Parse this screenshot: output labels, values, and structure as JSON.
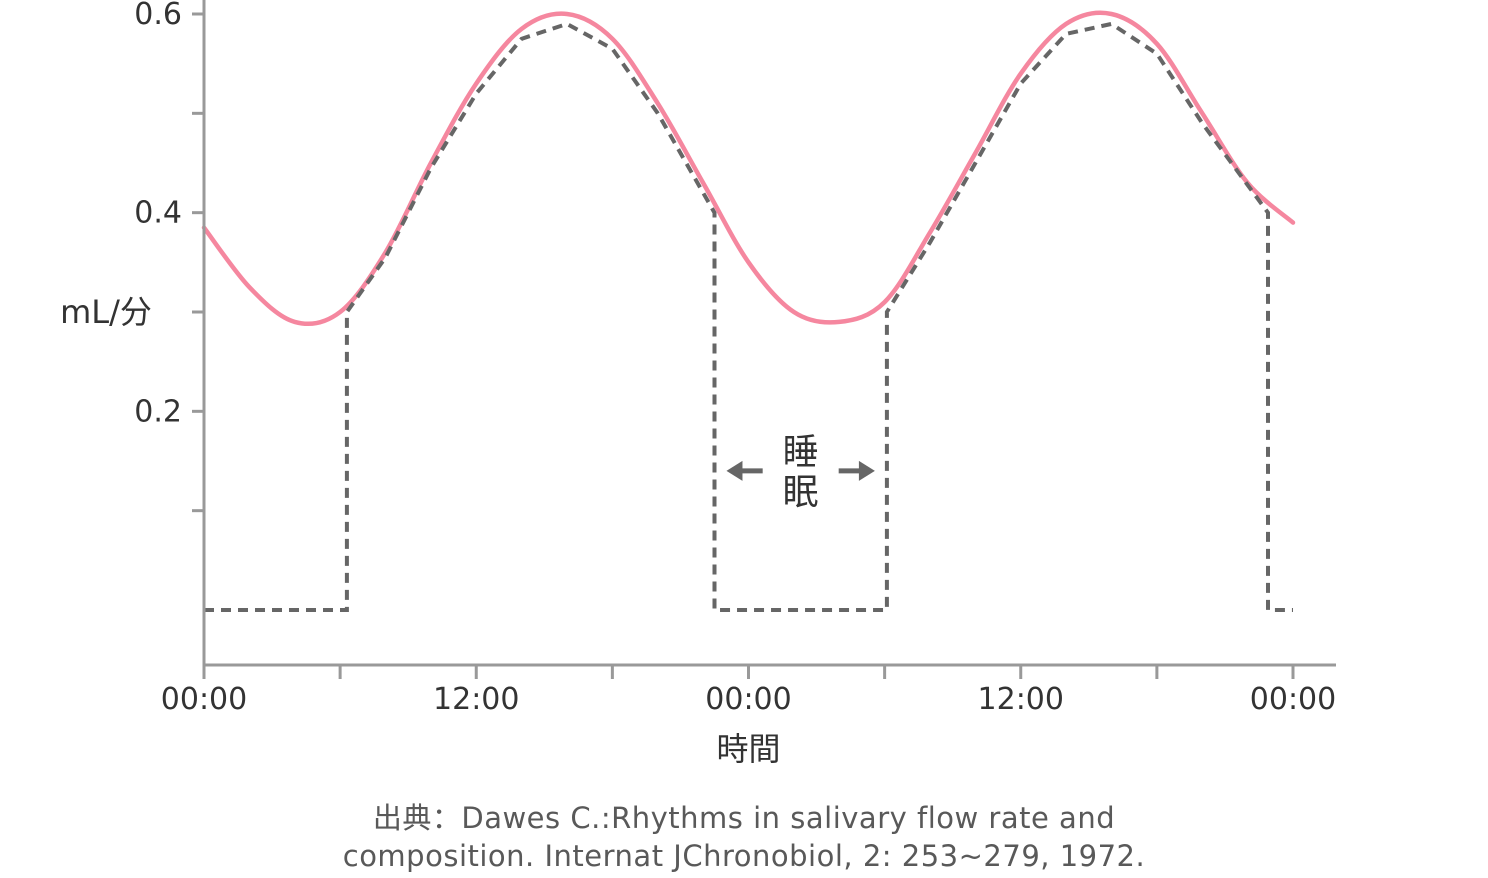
{
  "chart_data": {
    "type": "line",
    "title": "",
    "xlabel": "時間",
    "ylabel": "mL/分",
    "x_tick_labels": [
      "00:00",
      "12:00",
      "00:00",
      "12:00",
      "00:00"
    ],
    "x_ticks_hours": [
      0,
      12,
      24,
      36,
      48
    ],
    "x_minor_ticks_hours": [
      6,
      18,
      30,
      42
    ],
    "xlim_hours": [
      0,
      48
    ],
    "y_tick_labels": [
      "0.6",
      "0.4",
      "0.2"
    ],
    "y_ticks": [
      0.6,
      0.4,
      0.2
    ],
    "y_minor_ticks": [
      0.5,
      0.3,
      0.1
    ],
    "ylim": [
      0,
      0.6
    ],
    "grid": false,
    "series": [
      {
        "style": "solid",
        "color": "#f5879f",
        "x_hours": [
          0,
          2,
          4,
          6,
          8,
          10,
          12,
          14,
          16,
          18,
          20,
          22,
          24,
          26,
          28,
          30,
          32,
          34,
          36,
          38,
          40,
          42,
          44,
          46,
          48
        ],
        "values": [
          0.385,
          0.325,
          0.29,
          0.3,
          0.36,
          0.45,
          0.53,
          0.585,
          0.6,
          0.575,
          0.51,
          0.43,
          0.35,
          0.3,
          0.29,
          0.31,
          0.38,
          0.46,
          0.54,
          0.59,
          0.6,
          0.57,
          0.5,
          0.43,
          0.39
        ]
      },
      {
        "style": "dashed",
        "color": "#666666",
        "x_hours": [
          0,
          6.3,
          6.3,
          8,
          10,
          12,
          14,
          16,
          18,
          20,
          22.5,
          22.5,
          30.1,
          30.1,
          32,
          34,
          36,
          38,
          40,
          42,
          44,
          46.9,
          46.9,
          48
        ],
        "values": [
          0.0,
          0.0,
          0.3,
          0.355,
          0.445,
          0.52,
          0.575,
          0.59,
          0.565,
          0.5,
          0.4,
          0.0,
          0.0,
          0.3,
          0.37,
          0.45,
          0.53,
          0.58,
          0.59,
          0.56,
          0.49,
          0.4,
          0.0,
          0.0
        ]
      }
    ],
    "annotations": [
      {
        "text": "睡眠",
        "x_start_hours": 22.5,
        "x_end_hours": 30.1,
        "y": 0.14,
        "arrows": "both-outward"
      }
    ]
  },
  "source_line1": "出典：Dawes C.:Rhythms in salivary flow rate and",
  "source_line2": "composition. Internat JChronobiol, 2: 253~279, 1972.",
  "colors": {
    "axis": "#999999",
    "text": "#333333",
    "salivary": "#f5879f",
    "sleep": "#666666"
  }
}
